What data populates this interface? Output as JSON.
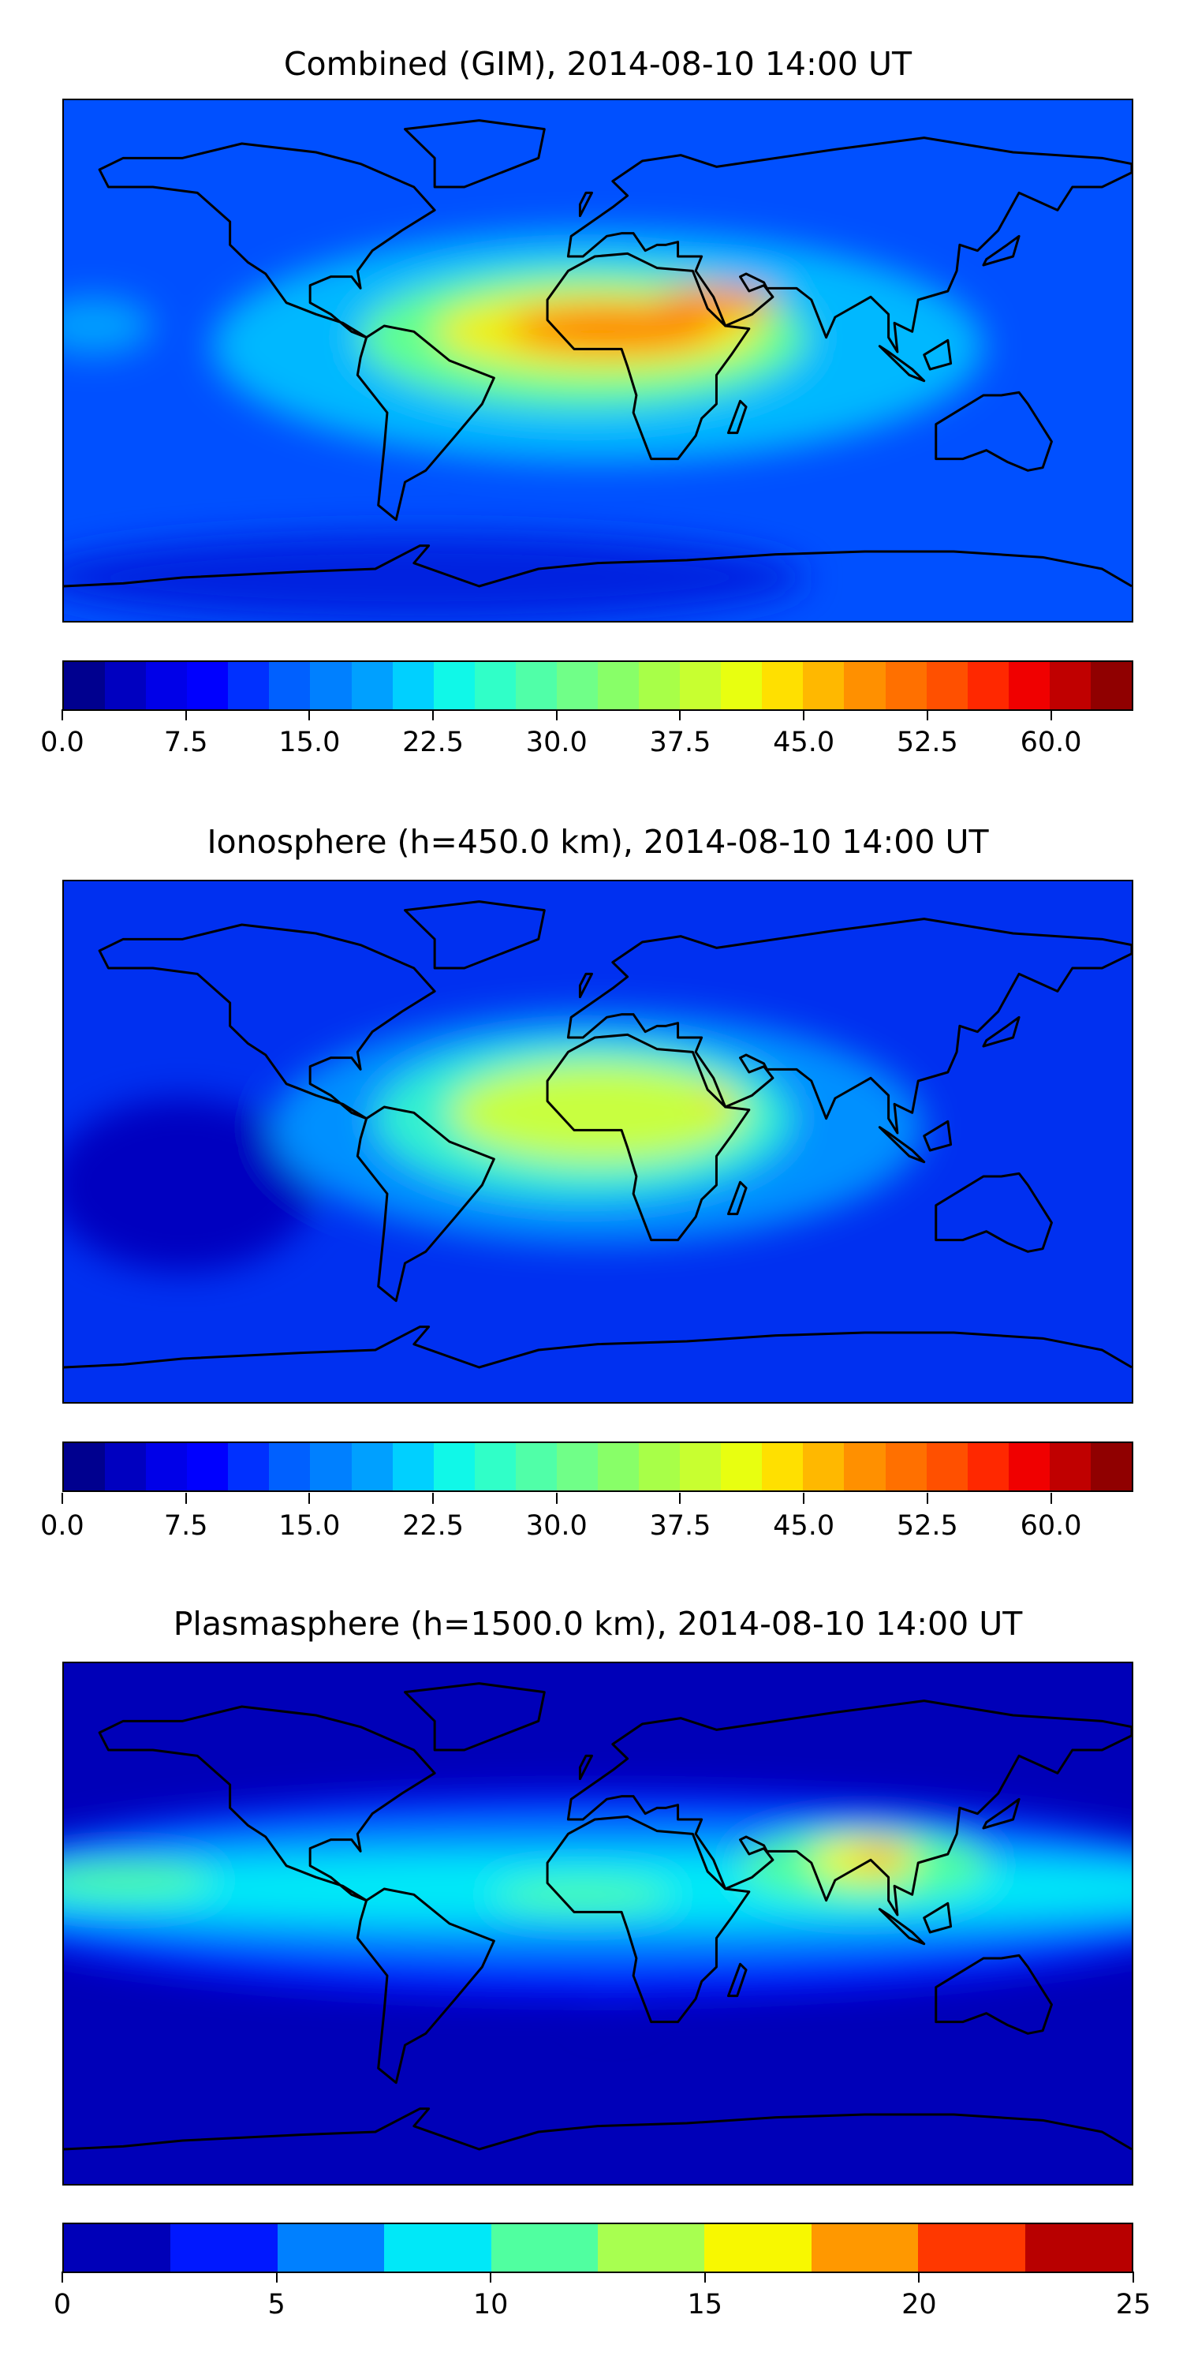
{
  "chart_data": [
    {
      "type": "heatmap",
      "title": "Combined (GIM), 2014-08-10 14:00 UT",
      "projection": "plate-carree world map with coastlines",
      "colorbar": {
        "range": [
          0,
          65
        ],
        "step": 2.5,
        "ticks": [
          "0.0",
          "7.5",
          "15.0",
          "22.5",
          "30.0",
          "37.5",
          "45.0",
          "52.5",
          "60.0"
        ],
        "tick_values": [
          0,
          7.5,
          15,
          22.5,
          30,
          37.5,
          45,
          52.5,
          60
        ],
        "colors": [
          "#00008f",
          "#0000c0",
          "#0000e8",
          "#0000ff",
          "#0030ff",
          "#0060ff",
          "#0080ff",
          "#00a0ff",
          "#00d0ff",
          "#10f8e8",
          "#30ffc8",
          "#50ffa8",
          "#70ff88",
          "#88ff68",
          "#a8ff48",
          "#c8ff30",
          "#e8ff10",
          "#ffe000",
          "#ffb800",
          "#ff9000",
          "#ff7000",
          "#ff5000",
          "#ff2800",
          "#f00000",
          "#c00000",
          "#900000"
        ]
      },
      "field": {
        "background": "#0050ff",
        "features": [
          {
            "lon": -60,
            "lat": -75,
            "rlon": 130,
            "rlat": 15,
            "color": "#0020e0"
          },
          {
            "lon": 0,
            "lat": 5,
            "rlon": 130,
            "rlat": 40,
            "color": "#00b8ff"
          },
          {
            "lon": -170,
            "lat": 12,
            "rlon": 20,
            "rlat": 10,
            "color": "#00a0ff"
          },
          {
            "lon": -5,
            "lat": 8,
            "rlon": 75,
            "rlat": 24,
            "color": "#60ff90"
          },
          {
            "lon": 0,
            "lat": 10,
            "rlon": 55,
            "rlat": 14,
            "color": "#f0f000"
          },
          {
            "lon": 5,
            "lat": 11,
            "rlon": 35,
            "rlat": 8,
            "color": "#ff8000"
          },
          {
            "lon": 40,
            "lat": 20,
            "rlon": 20,
            "rlat": 6,
            "color": "#ff9000"
          }
        ]
      }
    },
    {
      "type": "heatmap",
      "title": "Ionosphere  (h=450.0 km), 2014-08-10 14:00 UT",
      "projection": "plate-carree world map with coastlines",
      "colorbar": {
        "range": [
          0,
          65
        ],
        "step": 2.5,
        "ticks": [
          "0.0",
          "7.5",
          "15.0",
          "22.5",
          "30.0",
          "37.5",
          "45.0",
          "52.5",
          "60.0"
        ],
        "tick_values": [
          0,
          7.5,
          15,
          22.5,
          30,
          37.5,
          45,
          52.5,
          60
        ],
        "colors": [
          "#00008f",
          "#0000c0",
          "#0000e8",
          "#0000ff",
          "#0030ff",
          "#0060ff",
          "#0080ff",
          "#00a0ff",
          "#00d0ff",
          "#10f8e8",
          "#30ffc8",
          "#50ffa8",
          "#70ff88",
          "#88ff68",
          "#a8ff48",
          "#c8ff30",
          "#e8ff10",
          "#ffe000",
          "#ffb800",
          "#ff9000",
          "#ff7000",
          "#ff5000",
          "#ff2800",
          "#f00000",
          "#c00000",
          "#900000"
        ]
      },
      "field": {
        "background": "#0030f0",
        "features": [
          {
            "lon": -140,
            "lat": -15,
            "rlon": 45,
            "rlat": 30,
            "color": "#0000c0"
          },
          {
            "lon": 0,
            "lat": 5,
            "rlon": 110,
            "rlat": 40,
            "color": "#0090ff"
          },
          {
            "lon": -5,
            "lat": 8,
            "rlon": 70,
            "rlat": 27,
            "color": "#30f0d0"
          },
          {
            "lon": 0,
            "lat": 10,
            "rlon": 50,
            "rlat": 17,
            "color": "#c8ff40"
          },
          {
            "lon": 40,
            "lat": 15,
            "rlon": 6,
            "rlat": 2.5,
            "color": "#ffc000"
          }
        ]
      }
    },
    {
      "type": "heatmap",
      "title": "Plasmasphere (h=1500.0 km), 2014-08-10 14:00 UT",
      "projection": "plate-carree world map with coastlines",
      "colorbar": {
        "range": [
          0,
          25
        ],
        "step": 2.5,
        "ticks": [
          "0",
          "5",
          "10",
          "15",
          "20",
          "25"
        ],
        "tick_values": [
          0,
          5,
          10,
          15,
          20,
          25
        ],
        "colors": [
          "#0000b8",
          "#0018ff",
          "#0080ff",
          "#00e8f8",
          "#50ffa0",
          "#a8ff50",
          "#f8f800",
          "#ff9800",
          "#ff3800",
          "#b80000"
        ]
      },
      "field": {
        "background": "#0000b8",
        "features": [
          {
            "lon": 0,
            "lat": 10,
            "rlon": 220,
            "rlat": 36,
            "color": "#0018ff"
          },
          {
            "lon": 0,
            "lat": 12,
            "rlon": 220,
            "rlat": 25,
            "color": "#0080ff"
          },
          {
            "lon": 0,
            "lat": 12,
            "rlon": 220,
            "rlat": 13,
            "color": "#00e8f8"
          },
          {
            "lon": -160,
            "lat": 15,
            "rlon": 30,
            "rlat": 6,
            "color": "#50ffa0"
          },
          {
            "lon": -5,
            "lat": 10,
            "rlon": 30,
            "rlat": 5,
            "color": "#50ffa0"
          },
          {
            "lon": 90,
            "lat": 20,
            "rlon": 42,
            "rlat": 13,
            "color": "#50ffa0"
          },
          {
            "lon": 90,
            "lat": 22,
            "rlon": 18,
            "rlat": 7,
            "color": "#f8f800"
          },
          {
            "lon": 95,
            "lat": 23,
            "rlon": 8,
            "rlat": 3,
            "color": "#ff7000"
          },
          {
            "lon": 5,
            "lat": -30,
            "rlon": 9,
            "rlat": 4,
            "color": "#0000b8"
          }
        ]
      }
    }
  ]
}
